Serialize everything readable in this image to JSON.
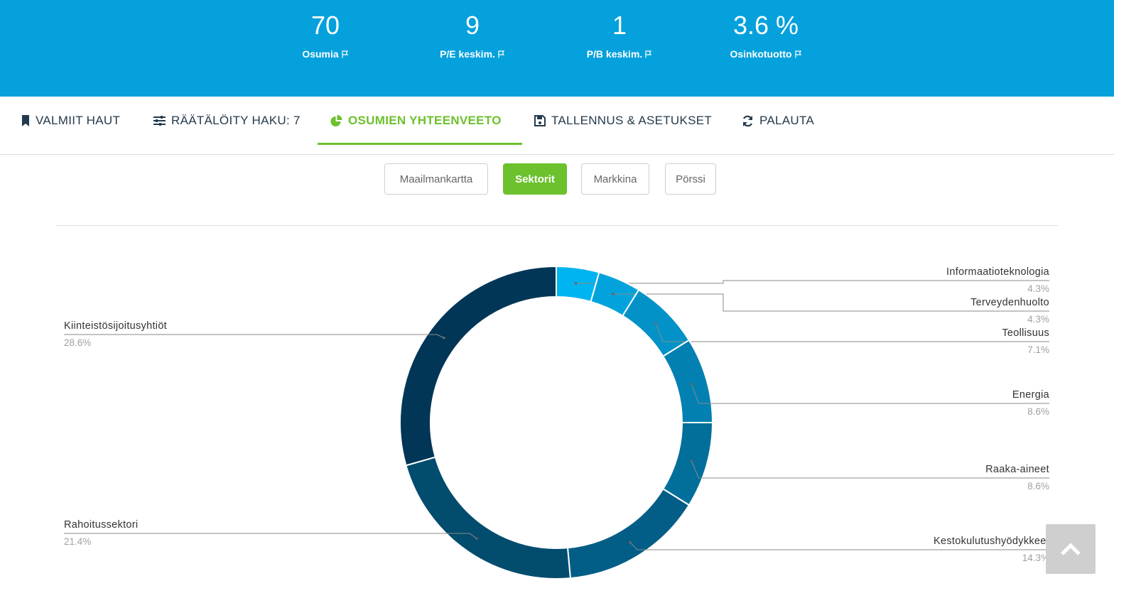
{
  "stats": [
    {
      "value": "70",
      "label": "Osumia"
    },
    {
      "value": "9",
      "label": "P/E keskim."
    },
    {
      "value": "1",
      "label": "P/B keskim."
    },
    {
      "value": "3.6 %",
      "label": "Osinkotuotto"
    }
  ],
  "tabs": [
    {
      "label": "VALMIIT HAUT",
      "icon": "bookmark-icon"
    },
    {
      "label": "RÄÄTÄLÖITY HAKU: 7",
      "icon": "sliders-icon"
    },
    {
      "label": "OSUMIEN YHTEENVEETO",
      "icon": "pie-chart-icon",
      "active": true
    },
    {
      "label": "TALLENNUS & ASETUKSET",
      "icon": "floppy-disk-icon"
    },
    {
      "label": "PALAUTA",
      "icon": "refresh-icon"
    }
  ],
  "view_buttons": [
    {
      "label": "Maailmankartta"
    },
    {
      "label": "Sektorit",
      "active": true
    },
    {
      "label": "Markkina"
    },
    {
      "label": "Pörssi"
    }
  ],
  "colors": {
    "banner": "#04a1dc",
    "accent_green": "#6cc12d",
    "tab_text": "#243a4c"
  },
  "chart_data": {
    "type": "pie",
    "variant": "donut",
    "slices": [
      {
        "name": "Informaatioteknologia",
        "value": 4.3,
        "label": "4.3%",
        "color": "#00b4f0"
      },
      {
        "name": "Terveydenhuolto",
        "value": 4.3,
        "label": "4.3%",
        "color": "#02a3dc"
      },
      {
        "name": "Teollisuus",
        "value": 7.1,
        "label": "7.1%",
        "color": "#0292c7"
      },
      {
        "name": "Energia",
        "value": 8.6,
        "label": "8.6%",
        "color": "#0280b2"
      },
      {
        "name": "Raaka-aineet",
        "value": 8.6,
        "label": "8.6%",
        "color": "#026f9b"
      },
      {
        "name": "Kestokulutushyödykkeet",
        "value": 14.3,
        "label": "14.3%",
        "color": "#025e86"
      },
      {
        "name": "Rahoitussektori",
        "value": 21.4,
        "label": "21.4%",
        "color": "#024c6e"
      },
      {
        "name": "Kiinteistösijoitusyhtiöt",
        "value": 28.6,
        "label": "28.6%",
        "color": "#023657"
      }
    ]
  }
}
